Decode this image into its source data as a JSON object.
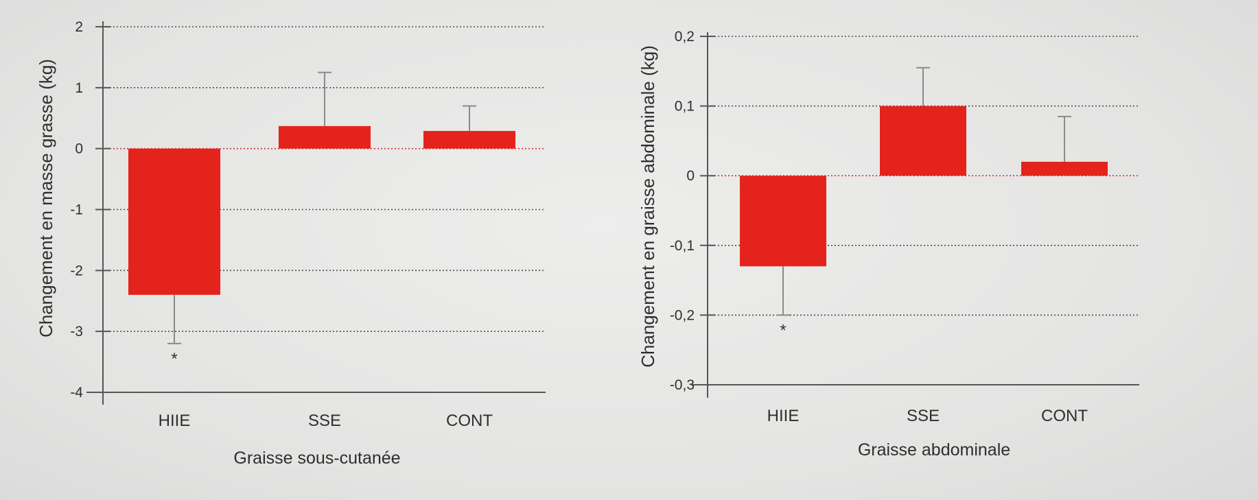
{
  "chart_data": [
    {
      "type": "bar",
      "categories": [
        "HIIE",
        "SSE",
        "CONT"
      ],
      "values": [
        -2.4,
        0.37,
        0.29
      ],
      "error_bar_ends": [
        -3.2,
        1.25,
        0.7
      ],
      "significance": [
        "*",
        "",
        ""
      ],
      "xlabel": "Graisse sous-cutanée",
      "ylabel": "Changement en masse grasse (kg)",
      "ylim": [
        -4,
        2
      ],
      "yticks": [
        2,
        1,
        0,
        -1,
        -2,
        -3,
        -4
      ],
      "ytick_labels": [
        "2",
        "1",
        "0",
        "-1",
        "-2",
        "-3",
        "-4"
      ],
      "grid": true,
      "colors": {
        "bar": "#e4231c",
        "zero_line": "#d42a22",
        "grid": "#4a4a4a",
        "axis": "#555555",
        "error_bar": "#8a8a8a"
      }
    },
    {
      "type": "bar",
      "categories": [
        "HIIE",
        "SSE",
        "CONT"
      ],
      "values": [
        -0.13,
        0.1,
        0.02
      ],
      "error_bar_ends": [
        -0.2,
        0.155,
        0.085
      ],
      "significance": [
        "*",
        "",
        ""
      ],
      "xlabel": "Graisse abdominale",
      "ylabel": "Changement en graisse abdominale (kg)",
      "ylim": [
        -0.3,
        0.2
      ],
      "yticks": [
        0.2,
        0.1,
        0,
        -0.1,
        -0.2,
        -0.3
      ],
      "ytick_labels": [
        "0,2",
        "0,1",
        "0",
        "-0,1",
        "-0,2",
        "-0,3"
      ],
      "grid": true,
      "colors": {
        "bar": "#e4231c",
        "zero_line": "#d42a22",
        "grid": "#4a4a4a",
        "axis": "#555555",
        "error_bar": "#8a8a8a"
      }
    }
  ]
}
